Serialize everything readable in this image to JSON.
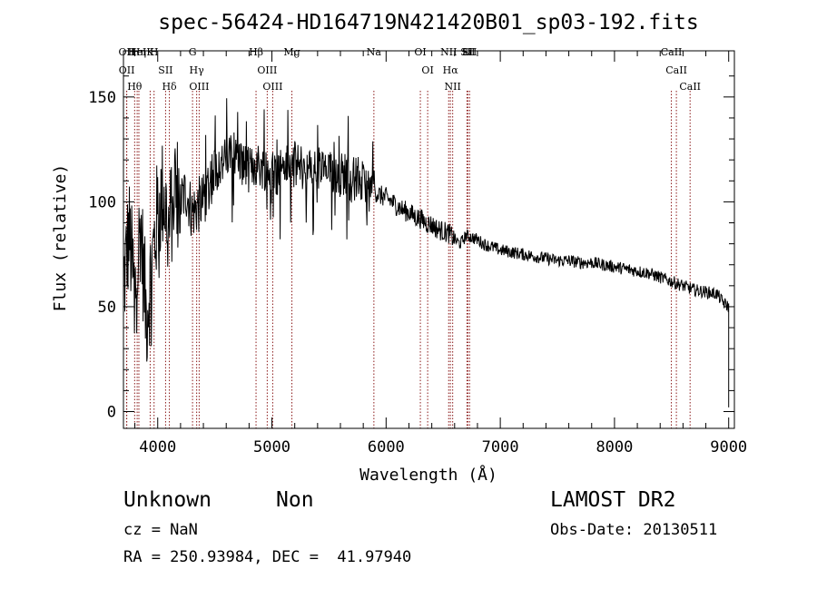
{
  "chart_data": {
    "type": "line",
    "title": "spec-56424-HD164719N421420B01_sp03-192.fits",
    "xlabel": "Wavelength (Å)",
    "ylabel": "Flux (relative)",
    "xlim": [
      3700,
      9050
    ],
    "ylim": [
      -8,
      172
    ],
    "xticks": [
      4000,
      5000,
      6000,
      7000,
      8000,
      9000
    ],
    "yticks": [
      0,
      50,
      100,
      150
    ],
    "grid": false,
    "line_color": "#000000",
    "marker_color": "#8b1a1a",
    "series": [
      {
        "x": [
          3700,
          3750,
          3800,
          3850,
          3900,
          3950,
          4000,
          4050,
          4100,
          4150,
          4200,
          4250,
          4300,
          4350,
          4400,
          4450,
          4500,
          4550,
          4600,
          4650,
          4700,
          4750,
          4800,
          4850,
          4900,
          4950,
          5000,
          5050,
          5100,
          5150,
          5200,
          5250,
          5300,
          5350,
          5400,
          5450,
          5500,
          5550,
          5600,
          5650,
          5700,
          5750,
          5800,
          5850,
          5900,
          5950,
          6000,
          6050,
          6100,
          6150,
          6200,
          6250,
          6300,
          6350,
          6400,
          6450,
          6500,
          6550,
          6600,
          6650,
          6700,
          6750,
          6800,
          6850,
          6900,
          6950,
          7000,
          7100,
          7200,
          7300,
          7400,
          7500,
          7600,
          7700,
          7800,
          7900,
          8000,
          8100,
          8200,
          8300,
          8400,
          8500,
          8600,
          8700,
          8800,
          8900,
          8950,
          9000
        ],
        "values": [
          60,
          85,
          55,
          90,
          45,
          70,
          95,
          105,
          85,
          110,
          100,
          105,
          95,
          98,
          100,
          110,
          115,
          118,
          120,
          122,
          121,
          118,
          115,
          118,
          117,
          116,
          115,
          114,
          118,
          116,
          118,
          117,
          115,
          114,
          116,
          115,
          113,
          115,
          113,
          114,
          110,
          112,
          108,
          106,
          105,
          103,
          102,
          100,
          98,
          96,
          95,
          93,
          92,
          90,
          89,
          87,
          86,
          85,
          82,
          80,
          84,
          83,
          82,
          80,
          79,
          78,
          77,
          76,
          75,
          74,
          73,
          72,
          72,
          71,
          71,
          70,
          69,
          68,
          67,
          66,
          64,
          62,
          60,
          58,
          57,
          56,
          52,
          50
        ]
      }
    ],
    "lines": [
      {
        "label": "Hθ",
        "x": 3798
      },
      {
        "label": "OII",
        "x": 3727
      },
      {
        "label": "OII",
        "x": 3729
      },
      {
        "label": "HeI",
        "x": 3820
      },
      {
        "label": "Hη",
        "x": 3835
      },
      {
        "label": "K",
        "x": 3934
      },
      {
        "label": "H",
        "x": 3968
      },
      {
        "label": "SII",
        "x": 4069
      },
      {
        "label": "Hδ",
        "x": 4102
      },
      {
        "label": "OIII",
        "x": 4363
      },
      {
        "label": "Hγ",
        "x": 4341
      },
      {
        "label": "G",
        "x": 4305
      },
      {
        "label": "Hβ",
        "x": 4861
      },
      {
        "label": "OIII",
        "x": 5007
      },
      {
        "label": "OIII",
        "x": 4959
      },
      {
        "label": "Mg",
        "x": 5175
      },
      {
        "label": "Na",
        "x": 5893
      },
      {
        "label": "OI",
        "x": 6300
      },
      {
        "label": "OI",
        "x": 6364
      },
      {
        "label": "Hα",
        "x": 6563
      },
      {
        "label": "NII",
        "x": 6548
      },
      {
        "label": "NII",
        "x": 6583
      },
      {
        "label": "SII",
        "x": 6716
      },
      {
        "label": "Li",
        "x": 6708
      },
      {
        "label": "SII",
        "x": 6731
      },
      {
        "label": "CaII",
        "x": 8498
      },
      {
        "label": "CaII",
        "x": 8542
      },
      {
        "label": "CaII",
        "x": 8662
      }
    ]
  },
  "info": {
    "class_label": "Unknown",
    "subclass_label": "Non",
    "cz_text": "cz = NaN",
    "coords_text": "RA = 250.93984, DEC =  41.97940",
    "survey_label": "LAMOST DR2",
    "obs_date_text": "Obs-Date: 20130511"
  }
}
